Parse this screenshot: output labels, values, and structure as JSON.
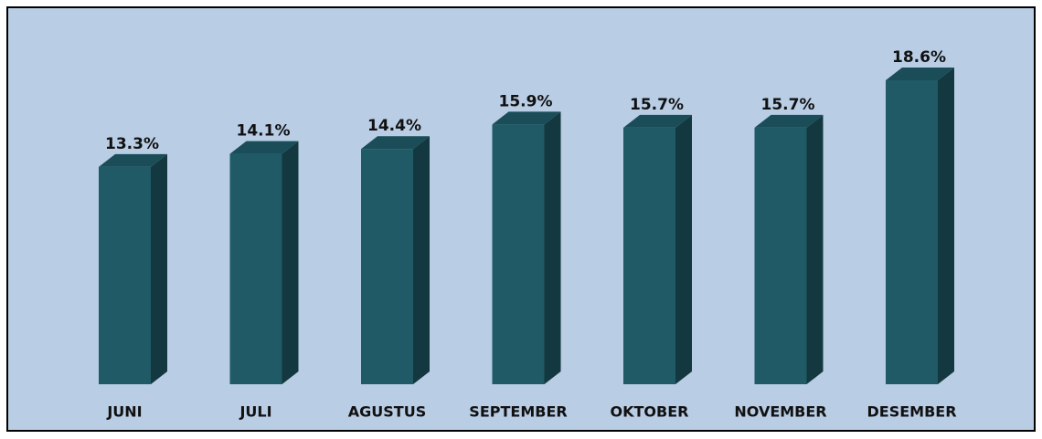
{
  "chart_data": {
    "type": "bar3d",
    "categories": [
      "JUNI",
      "JULI",
      "AGUSTUS",
      "SEPTEMBER",
      "OKTOBER",
      "NOVEMBER",
      "DESEMBER"
    ],
    "values": [
      13.3,
      14.1,
      14.4,
      15.9,
      15.7,
      15.7,
      18.6
    ],
    "value_labels": [
      "13.3%",
      "14.1%",
      "14.4%",
      "15.9%",
      "15.7%",
      "15.7%",
      "18.6%"
    ],
    "color": "#1f5a66"
  }
}
